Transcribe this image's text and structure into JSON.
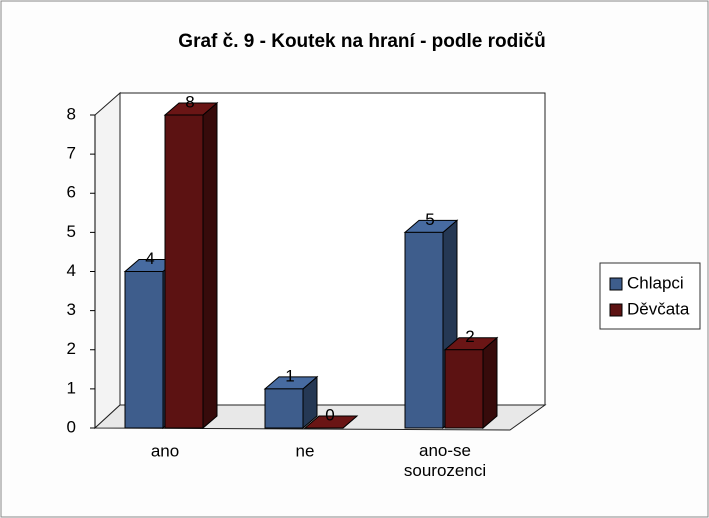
{
  "chart_data": {
    "type": "bar3d",
    "title": "Graf č. 9 - Koutek na hraní - podle rodičů",
    "categories": [
      "ano",
      "ne",
      "ano-se sourozenci"
    ],
    "series": [
      {
        "name": "Chlapci",
        "color": "#3e5d8c",
        "values": [
          4,
          1,
          5
        ]
      },
      {
        "name": "Děvčata",
        "color": "#5c1212",
        "values": [
          8,
          0,
          2
        ]
      }
    ],
    "ylim": [
      0,
      8
    ],
    "yticks": [
      0,
      1,
      2,
      3,
      4,
      5,
      6,
      7,
      8
    ],
    "grid": false,
    "legend": "right"
  }
}
